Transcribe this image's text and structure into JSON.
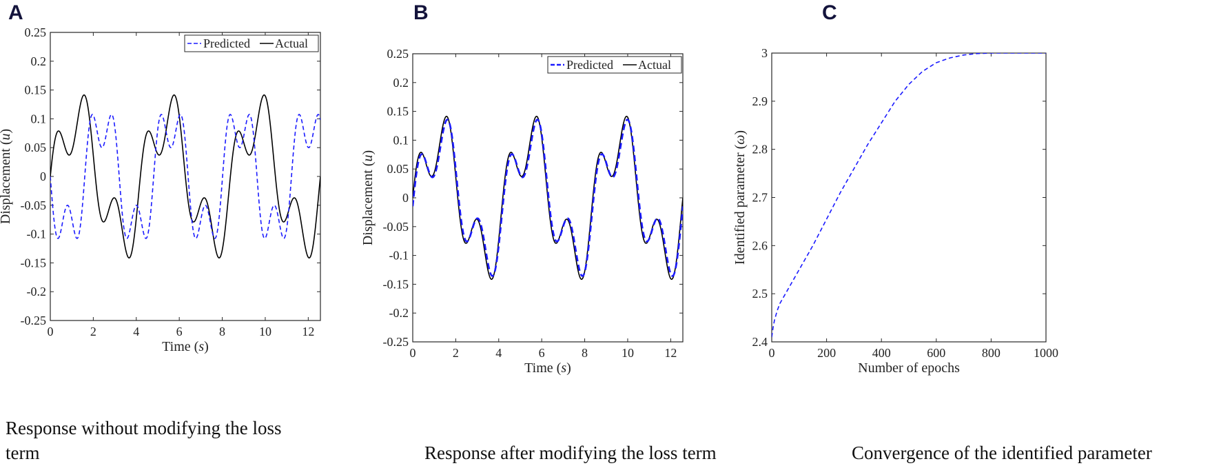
{
  "panels": [
    {
      "letter": "A",
      "caption_lines": [
        "Response without modifying the loss",
        "term"
      ]
    },
    {
      "letter": "B",
      "caption_lines": [
        "Response after modifying the loss term"
      ]
    },
    {
      "letter": "C",
      "caption_lines": [
        "Convergence of the identified parameter"
      ]
    }
  ],
  "chart_data": [
    {
      "type": "line",
      "xlabel": "Time (s)",
      "ylabel": "Displacement (u)",
      "xlim": [
        0,
        12.566
      ],
      "ylim": [
        -0.25,
        0.25
      ],
      "xticks": [
        "0",
        "2",
        "4",
        "6",
        "8",
        "10",
        "12"
      ],
      "yticks": [
        "-0.25",
        "-0.2",
        "-0.15",
        "-0.1",
        "-0.05",
        "0",
        "0.05",
        "0.1",
        "0.15",
        "0.2",
        "0.25"
      ],
      "legend": {
        "placement": "top-right",
        "entries": [
          "Predicted",
          "Actual"
        ]
      },
      "grid": false,
      "series": [
        {
          "name": "Predicted",
          "style": "dashed",
          "color": "#1a1aff",
          "equation": "-0.1*sin(1.96*t) - 0.05*sin(5.88*t)",
          "x_range": [
            0,
            12.566
          ]
        },
        {
          "name": "Actual",
          "style": "solid",
          "color": "#000000",
          "equation": "0.1*sin(1.5*t) + 0.05*sin(4.5*t) - 0.05*sin(1.5*t)*sin(3*t)",
          "x_range": [
            0,
            12.566
          ]
        }
      ]
    },
    {
      "type": "line",
      "xlabel": "Time (s)",
      "ylabel": "Displacement (u)",
      "xlim": [
        0,
        12.566
      ],
      "ylim": [
        -0.25,
        0.25
      ],
      "xticks": [
        "0",
        "2",
        "4",
        "6",
        "8",
        "10",
        "12"
      ],
      "yticks": [
        "-0.25",
        "-0.2",
        "-0.15",
        "-0.1",
        "-0.05",
        "0",
        "0.05",
        "0.1",
        "0.15",
        "0.2",
        "0.25"
      ],
      "legend": {
        "placement": "top-right",
        "entries": [
          "Predicted",
          "Actual"
        ]
      },
      "grid": false,
      "series": [
        {
          "name": "Predicted",
          "style": "dashed",
          "color": "#1a1aff",
          "equation": "0.96*actual(t - 0.04)",
          "x_range": [
            0,
            12.566
          ]
        },
        {
          "name": "Actual",
          "style": "solid",
          "color": "#000000",
          "equation": "0.1*sin(1.5*t) + 0.05*sin(4.5*t) - 0.05*sin(1.5*t)*sin(3*t)",
          "x_range": [
            0,
            12.566
          ]
        }
      ]
    },
    {
      "type": "line",
      "xlabel": "Number of epochs",
      "ylabel": "Identified parameter (ω)",
      "xlim": [
        0,
        1000
      ],
      "ylim": [
        2.4,
        3
      ],
      "xticks": [
        "0",
        "200",
        "400",
        "600",
        "800",
        "1000"
      ],
      "yticks": [
        "2.4",
        "2.5",
        "2.6",
        "2.7",
        "2.8",
        "2.9",
        "3"
      ],
      "grid": false,
      "series": [
        {
          "style": "dashed",
          "color": "#1a1aff",
          "x": [
            0,
            5,
            10,
            20,
            30,
            50,
            100,
            150,
            200,
            250,
            300,
            350,
            400,
            450,
            500,
            550,
            600,
            650,
            700,
            750,
            800,
            850,
            900,
            950,
            1000
          ],
          "y": [
            2.41,
            2.43,
            2.445,
            2.465,
            2.48,
            2.5,
            2.55,
            2.6,
            2.655,
            2.71,
            2.76,
            2.81,
            2.855,
            2.9,
            2.935,
            2.962,
            2.98,
            2.99,
            2.996,
            2.999,
            3.0,
            3.0,
            3.0,
            3.0,
            3.0
          ]
        }
      ]
    }
  ]
}
